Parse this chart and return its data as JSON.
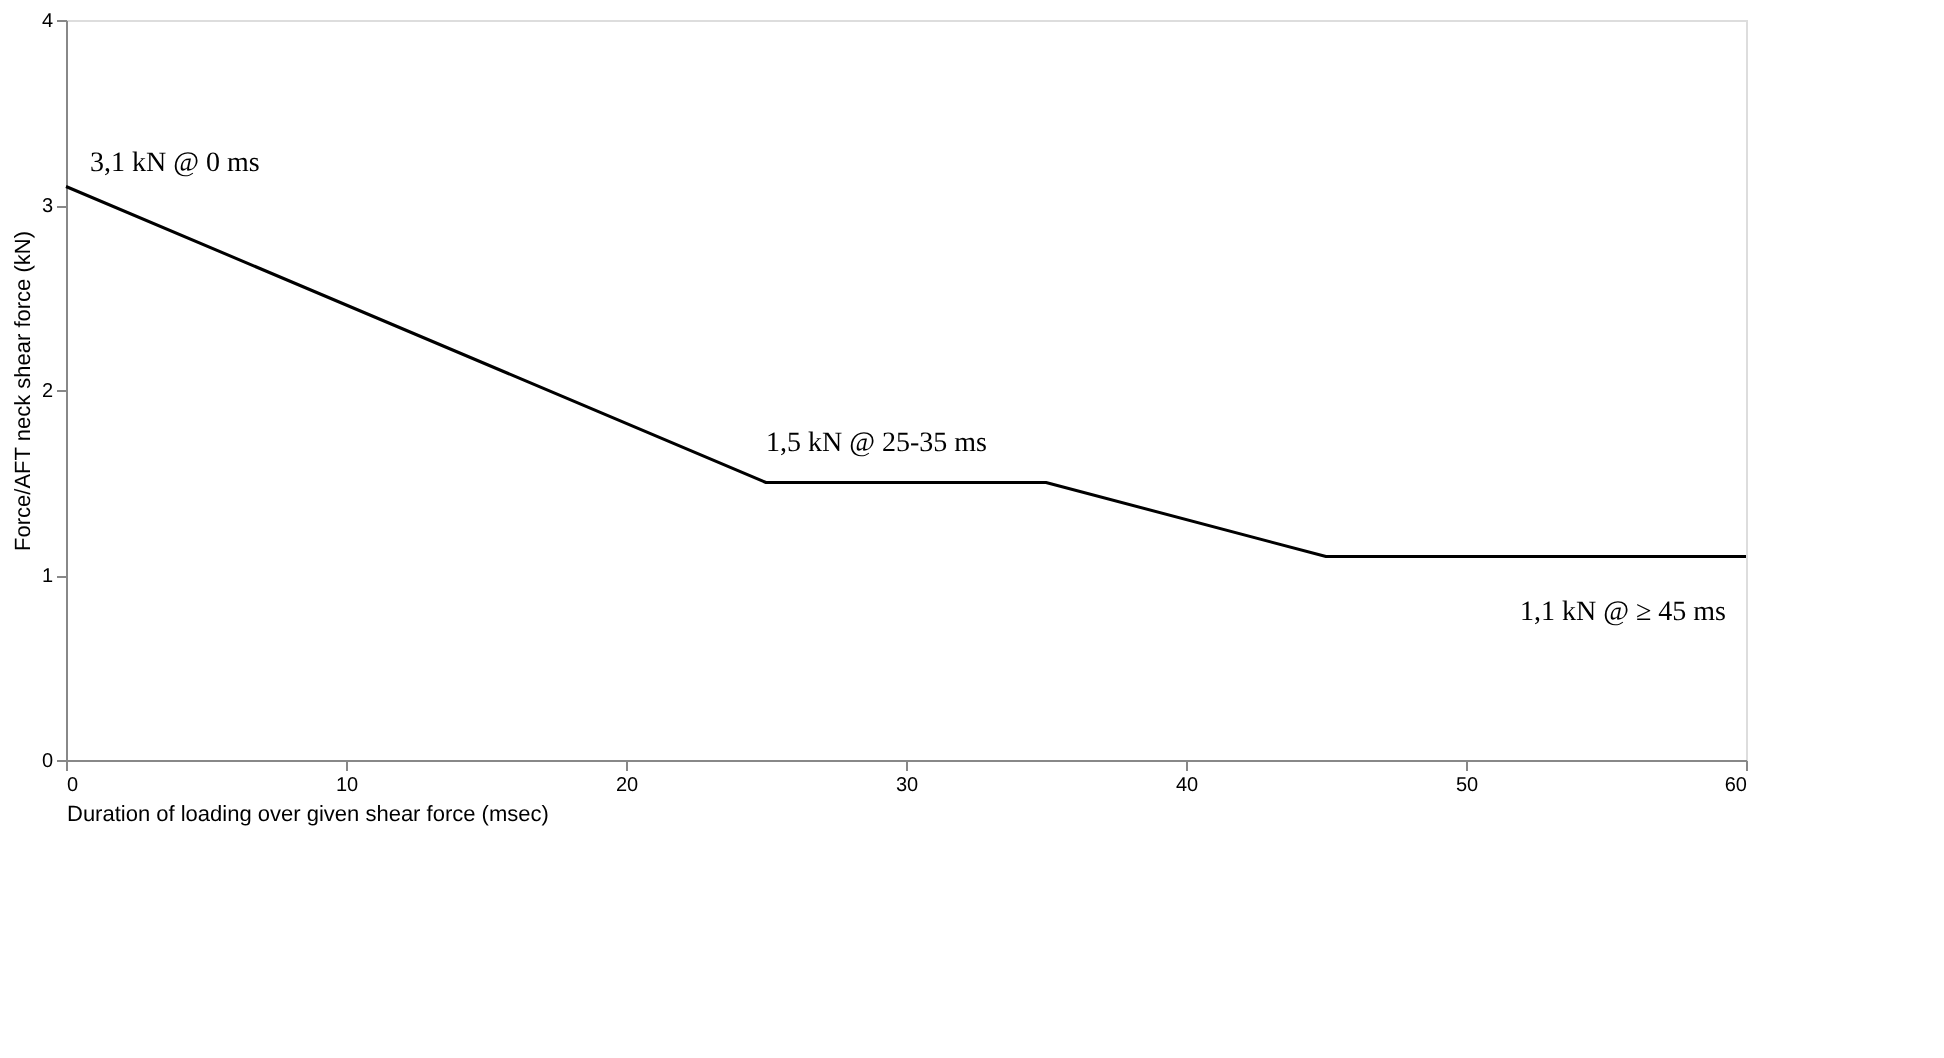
{
  "chart_data": {
    "type": "line",
    "xlabel": "Duration of loading over given shear force (msec)",
    "ylabel": "Force/AFT neck shear force (kN)",
    "x": [
      0,
      25,
      35,
      45,
      60
    ],
    "values": [
      3.1,
      1.5,
      1.5,
      1.1,
      1.1
    ],
    "color": "#000000",
    "xlim": [
      0,
      60
    ],
    "xticks": [
      0,
      10,
      20,
      30,
      40,
      50,
      60
    ],
    "ylim": [
      0,
      4
    ],
    "yticks": [
      0,
      1,
      2,
      3,
      4
    ],
    "grid": false,
    "marker": "none",
    "line_style": "solid",
    "annotations": [
      {
        "text": "3,1 kN @ 0 ms",
        "x": 0,
        "y": 3.1
      },
      {
        "text": "1,5 kN @ 25-35 ms",
        "x": 25,
        "y": 1.5
      },
      "1,1 kN @ ≥ 45 ms"
    ]
  }
}
